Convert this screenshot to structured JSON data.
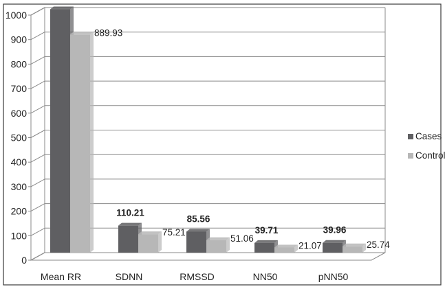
{
  "chart_data": {
    "type": "bar",
    "categories": [
      "Mean RR",
      "SDNN",
      "RMSSD",
      "NN50",
      "pNN50"
    ],
    "series": [
      {
        "name": "Cases",
        "values": [
          992.86,
          110.21,
          85.56,
          39.71,
          39.96
        ],
        "color": "#5f5f62"
      },
      {
        "name": "Control",
        "values": [
          889.93,
          75.21,
          51.06,
          21.07,
          25.74
        ],
        "color": "#b7b7b7"
      }
    ],
    "data_labels": {
      "Cases": [
        "992.86",
        "110.21",
        "85.56",
        "39.71",
        "39.96"
      ],
      "Control": [
        "889.93",
        "75.21",
        "51.06",
        "21.07",
        "25.74"
      ]
    },
    "ylim": [
      0,
      1000
    ],
    "yticks": [
      0,
      100,
      200,
      300,
      400,
      500,
      600,
      700,
      800,
      900,
      1000
    ],
    "grid": true,
    "legend_position": "right",
    "title": "",
    "xlabel": "",
    "ylabel": ""
  }
}
